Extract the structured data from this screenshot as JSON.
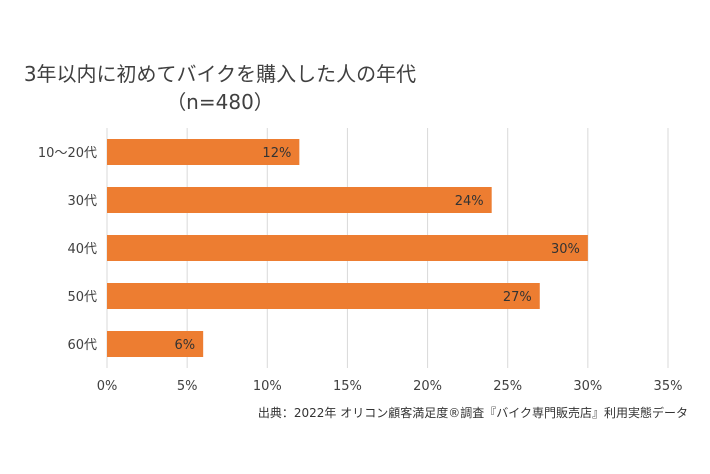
{
  "colors": {
    "bar": "#ED7D31",
    "grid": "#D9D9D9",
    "text": "#404040"
  },
  "chart_data": {
    "type": "bar",
    "orientation": "horizontal",
    "title": "3年以内に初めてバイクを購入した人の年代",
    "subtitle": "（n=480）",
    "categories": [
      "10〜20代",
      "30代",
      "40代",
      "50代",
      "60代"
    ],
    "values": [
      12,
      24,
      30,
      27,
      6
    ],
    "value_labels": [
      "12%",
      "24%",
      "30%",
      "27%",
      "6%"
    ],
    "xlim": [
      0,
      35
    ],
    "x_ticks": [
      0,
      5,
      10,
      15,
      20,
      25,
      30,
      35
    ],
    "x_tick_labels": [
      "0%",
      "5%",
      "10%",
      "15%",
      "20%",
      "25%",
      "30%",
      "35%"
    ],
    "grid": true,
    "legend": "none",
    "source": "出典：2022年 オリコン顧客満足度®調査『バイク専門販売店』利用実態データ"
  }
}
